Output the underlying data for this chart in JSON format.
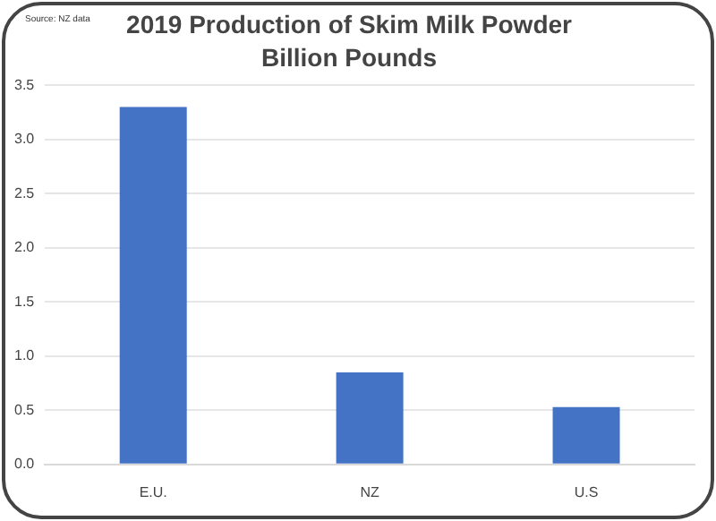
{
  "chart_data": {
    "type": "bar",
    "title": "2019 Production of Skim Milk Powder",
    "subtitle": "Billion Pounds",
    "annotations": [
      "Source: NZ data"
    ],
    "categories": [
      "E.U.",
      "NZ",
      "U.S"
    ],
    "values": [
      3.3,
      0.85,
      0.53
    ],
    "color": "#4472c4",
    "ylim": [
      0,
      3.5
    ],
    "yticks": [
      {
        "value": 0,
        "label": "0.0"
      },
      0.5,
      {
        "value": 1,
        "label": "1.0"
      },
      1.5,
      {
        "value": 2,
        "label": "2.0"
      },
      2.5,
      {
        "value": 3,
        "label": "3.0"
      },
      3.5
    ],
    "grid": "y"
  }
}
